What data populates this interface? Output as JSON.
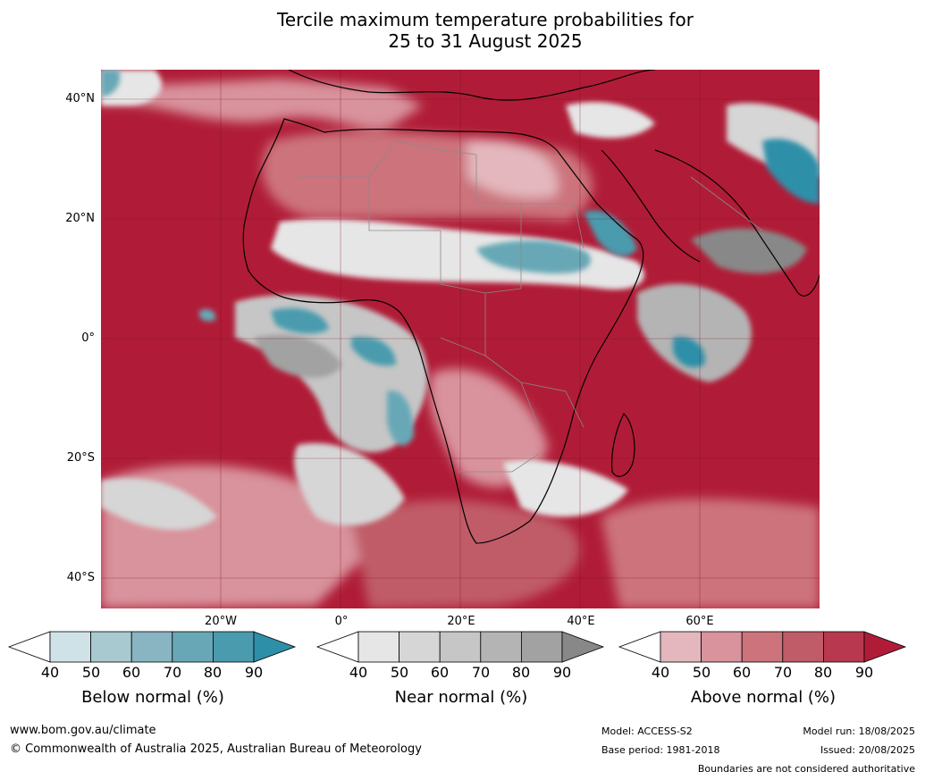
{
  "title_line1": "Tercile maximum temperature probabilities for",
  "title_line2": "25 to 31 August 2025",
  "lat_labels": [
    "40°N",
    "20°N",
    "0°",
    "20°S",
    "40°S"
  ],
  "lon_labels": [
    "20°W",
    "0°",
    "20°E",
    "40°E",
    "60°E"
  ],
  "colorbars": {
    "below": {
      "label": "Below normal (%)",
      "ticks": [
        "40",
        "50",
        "60",
        "70",
        "80",
        "90"
      ],
      "colors": [
        "#cfe2e8",
        "#a9c9d1",
        "#88b5c1",
        "#68a8b6",
        "#4a9bad",
        "#2d8fa8"
      ]
    },
    "near": {
      "label": "Near normal (%)",
      "ticks": [
        "40",
        "50",
        "60",
        "70",
        "80",
        "90"
      ],
      "colors": [
        "#e6e6e6",
        "#d6d6d6",
        "#c6c6c6",
        "#b4b4b4",
        "#a2a2a2",
        "#888888"
      ]
    },
    "above": {
      "label": "Above normal (%)",
      "ticks": [
        "40",
        "50",
        "60",
        "70",
        "80",
        "90"
      ],
      "colors": [
        "#e3b7bd",
        "#d8939c",
        "#cc737c",
        "#c05b68",
        "#b8394f",
        "#b01c37"
      ]
    }
  },
  "footer": {
    "website": "www.bom.gov.au/climate",
    "copyright": "© Commonwealth of Australia 2025, Australian Bureau of Meteorology",
    "model": "Model: ACCESS-S2",
    "base_period": "Base period: 1981-2018",
    "model_run": "Model run: 18/08/2025",
    "issued": "Issued: 20/08/2025",
    "boundaries": "Boundaries are not considered authoritative"
  }
}
